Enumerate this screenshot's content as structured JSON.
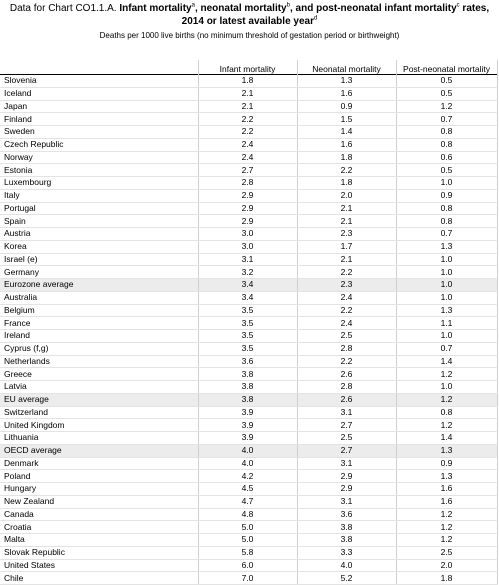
{
  "title": {
    "prefix": "Data for Chart CO1.1.A. ",
    "part1": "Infant mortality",
    "sup1": "a",
    "part2": ", neonatal mortality",
    "sup2": "b",
    "part3": ", and post-neonatal infant mortality",
    "sup3": "c",
    "part4": " rates, 2014 or latest available year",
    "sup4": "d"
  },
  "subtitle": "Deaths per 1000 live births (no minimum threshold of gestation period or birthweight)",
  "columns": [
    "",
    "Infant mortality",
    "Neonatal mortality",
    "Post-neonatal mortality"
  ],
  "rows": [
    {
      "country": "Slovenia",
      "infant": "1.8",
      "neonatal": "1.3",
      "post": "0.5"
    },
    {
      "country": "Iceland",
      "infant": "2.1",
      "neonatal": "1.6",
      "post": "0.5"
    },
    {
      "country": "Japan",
      "infant": "2.1",
      "neonatal": "0.9",
      "post": "1.2"
    },
    {
      "country": "Finland",
      "infant": "2.2",
      "neonatal": "1.5",
      "post": "0.7"
    },
    {
      "country": "Sweden",
      "infant": "2.2",
      "neonatal": "1.4",
      "post": "0.8"
    },
    {
      "country": "Czech Republic",
      "infant": "2.4",
      "neonatal": "1.6",
      "post": "0.8"
    },
    {
      "country": "Norway",
      "infant": "2.4",
      "neonatal": "1.8",
      "post": "0.6"
    },
    {
      "country": "Estonia",
      "infant": "2.7",
      "neonatal": "2.2",
      "post": "0.5"
    },
    {
      "country": "Luxembourg",
      "infant": "2.8",
      "neonatal": "1.8",
      "post": "1.0"
    },
    {
      "country": "Italy",
      "infant": "2.9",
      "neonatal": "2.0",
      "post": "0.9"
    },
    {
      "country": "Portugal",
      "infant": "2.9",
      "neonatal": "2.1",
      "post": "0.8"
    },
    {
      "country": "Spain",
      "infant": "2.9",
      "neonatal": "2.1",
      "post": "0.8"
    },
    {
      "country": "Austria",
      "infant": "3.0",
      "neonatal": "2.3",
      "post": "0.7"
    },
    {
      "country": "Korea",
      "infant": "3.0",
      "neonatal": "1.7",
      "post": "1.3"
    },
    {
      "country": "Israel (e)",
      "infant": "3.1",
      "neonatal": "2.1",
      "post": "1.0"
    },
    {
      "country": "Germany",
      "infant": "3.2",
      "neonatal": "2.2",
      "post": "1.0"
    },
    {
      "country": "Eurozone average",
      "infant": "3.4",
      "neonatal": "2.3",
      "post": "1.0"
    },
    {
      "country": "Australia",
      "infant": "3.4",
      "neonatal": "2.4",
      "post": "1.0"
    },
    {
      "country": "Belgium",
      "infant": "3.5",
      "neonatal": "2.2",
      "post": "1.3"
    },
    {
      "country": "France",
      "infant": "3.5",
      "neonatal": "2.4",
      "post": "1.1"
    },
    {
      "country": "Ireland",
      "infant": "3.5",
      "neonatal": "2.5",
      "post": "1.0"
    },
    {
      "country": "Cyprus (f,g)",
      "infant": "3.5",
      "neonatal": "2.8",
      "post": "0.7"
    },
    {
      "country": "Netherlands",
      "infant": "3.6",
      "neonatal": "2.2",
      "post": "1.4"
    },
    {
      "country": "Greece",
      "infant": "3.8",
      "neonatal": "2.6",
      "post": "1.2"
    },
    {
      "country": "Latvia",
      "infant": "3.8",
      "neonatal": "2.8",
      "post": "1.0"
    },
    {
      "country": "EU average",
      "infant": "3.8",
      "neonatal": "2.6",
      "post": "1.2"
    },
    {
      "country": "Switzerland",
      "infant": "3.9",
      "neonatal": "3.1",
      "post": "0.8"
    },
    {
      "country": "United Kingdom",
      "infant": "3.9",
      "neonatal": "2.7",
      "post": "1.2"
    },
    {
      "country": "Lithuania",
      "infant": "3.9",
      "neonatal": "2.5",
      "post": "1.4"
    },
    {
      "country": "OECD average",
      "infant": "4.0",
      "neonatal": "2.7",
      "post": "1.3"
    },
    {
      "country": "Denmark",
      "infant": "4.0",
      "neonatal": "3.1",
      "post": "0.9"
    },
    {
      "country": "Poland",
      "infant": "4.2",
      "neonatal": "2.9",
      "post": "1.3"
    },
    {
      "country": "Hungary",
      "infant": "4.5",
      "neonatal": "2.9",
      "post": "1.6"
    },
    {
      "country": "New Zealand",
      "infant": "4.7",
      "neonatal": "3.1",
      "post": "1.6"
    },
    {
      "country": "Canada",
      "infant": "4.8",
      "neonatal": "3.6",
      "post": "1.2"
    },
    {
      "country": "Croatia",
      "infant": "5.0",
      "neonatal": "3.8",
      "post": "1.2"
    },
    {
      "country": "Malta",
      "infant": "5.0",
      "neonatal": "3.8",
      "post": "1.2"
    },
    {
      "country": "Slovak Republic",
      "infant": "5.8",
      "neonatal": "3.3",
      "post": "2.5"
    },
    {
      "country": "United States",
      "infant": "6.0",
      "neonatal": "4.0",
      "post": "2.0"
    },
    {
      "country": "Chile",
      "infant": "7.0",
      "neonatal": "5.2",
      "post": "1.8"
    }
  ],
  "colors": {
    "row_highlight": "#ececec",
    "grid": "#cfcfcf"
  }
}
